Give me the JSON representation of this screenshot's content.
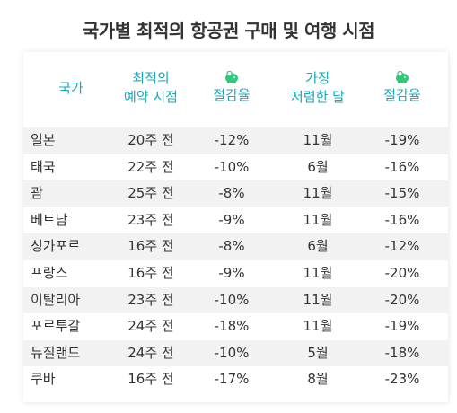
{
  "title": "국가별 최적의 항공권 구매 및 여행 시점",
  "colors": {
    "accent": "#19a8b8",
    "icon": "#34c77b",
    "row_alt": "#f2f2f2"
  },
  "header": {
    "country": "국가",
    "best_time_line1": "최적의",
    "best_time_line2": "예약 시점",
    "savings1_icon": "piggy-bank-icon",
    "savings1": "절감율",
    "cheapest_line1": "가장",
    "cheapest_line2": "저렴한 달",
    "savings2_icon": "piggy-bank-icon",
    "savings2": "절감율"
  },
  "rows": [
    {
      "country": "일본",
      "booking": "20주 전",
      "save1": "-12%",
      "month": "11월",
      "save2": "-19%"
    },
    {
      "country": "태국",
      "booking": "22주 전",
      "save1": "-10%",
      "month": "6월",
      "save2": "-16%"
    },
    {
      "country": "괌",
      "booking": "25주 전",
      "save1": "-8%",
      "month": "11월",
      "save2": "-15%"
    },
    {
      "country": "베트남",
      "booking": "23주 전",
      "save1": "-9%",
      "month": "11월",
      "save2": "-16%"
    },
    {
      "country": "싱가포르",
      "booking": "16주 전",
      "save1": "-8%",
      "month": "6월",
      "save2": "-12%"
    },
    {
      "country": "프랑스",
      "booking": "16주 전",
      "save1": "-9%",
      "month": "11월",
      "save2": "-20%"
    },
    {
      "country": "이탈리아",
      "booking": "23주 전",
      "save1": "-10%",
      "month": "11월",
      "save2": "-20%"
    },
    {
      "country": "포르투갈",
      "booking": "24주 전",
      "save1": "-18%",
      "month": "11월",
      "save2": "-19%"
    },
    {
      "country": "뉴질랜드",
      "booking": "24주 전",
      "save1": "-10%",
      "month": "5월",
      "save2": "-18%"
    },
    {
      "country": "쿠바",
      "booking": "16주 전",
      "save1": "-17%",
      "month": "8월",
      "save2": "-23%"
    }
  ]
}
